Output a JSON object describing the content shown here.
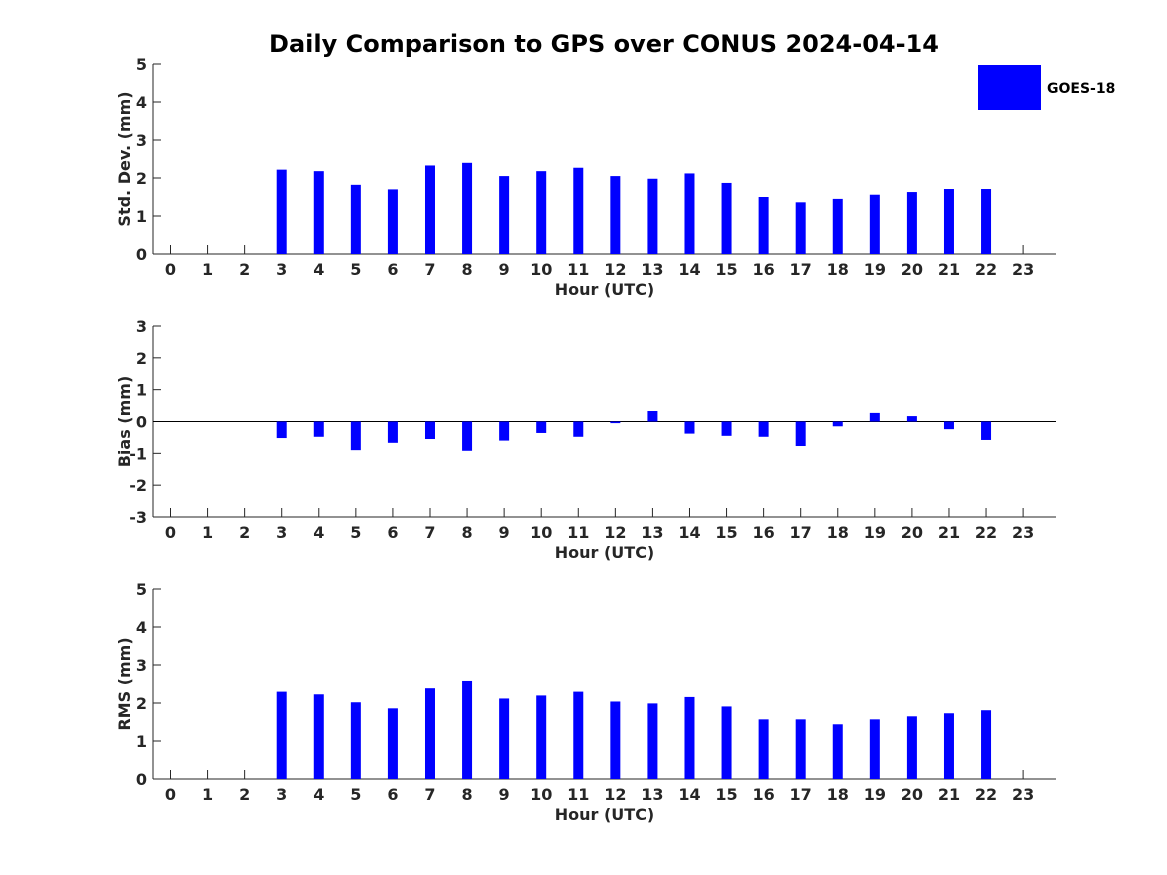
{
  "title": "Daily Comparison to GPS over CONUS 2024-04-14",
  "legend": {
    "label": "GOES-18",
    "color": "#0000ff"
  },
  "bar_color": "#0000ff",
  "axis_color": "#262626",
  "chart_data": [
    {
      "type": "bar",
      "id": "stddev",
      "xlabel": "Hour (UTC)",
      "ylabel": "Std. Dev. (mm)",
      "ylim": [
        0,
        5
      ],
      "yticks": [
        0,
        1,
        2,
        3,
        4,
        5
      ],
      "categories": [
        0,
        1,
        2,
        3,
        4,
        5,
        6,
        7,
        8,
        9,
        10,
        11,
        12,
        13,
        14,
        15,
        16,
        17,
        18,
        19,
        20,
        21,
        22,
        23
      ],
      "series": [
        {
          "name": "GOES-18",
          "values": [
            null,
            null,
            null,
            2.22,
            2.18,
            1.82,
            1.7,
            2.33,
            2.4,
            2.05,
            2.18,
            2.27,
            2.05,
            1.98,
            2.12,
            1.87,
            1.5,
            1.36,
            1.45,
            1.56,
            1.63,
            1.71,
            1.71,
            null
          ]
        }
      ]
    },
    {
      "type": "bar",
      "id": "bias",
      "xlabel": "Hour (UTC)",
      "ylabel": "Bias (mm)",
      "ylim": [
        -3,
        3
      ],
      "yticks": [
        -3,
        -2,
        -1,
        0,
        1,
        2,
        3
      ],
      "categories": [
        0,
        1,
        2,
        3,
        4,
        5,
        6,
        7,
        8,
        9,
        10,
        11,
        12,
        13,
        14,
        15,
        16,
        17,
        18,
        19,
        20,
        21,
        22,
        23
      ],
      "zero_line": true,
      "series": [
        {
          "name": "GOES-18",
          "values": [
            null,
            null,
            null,
            -0.52,
            -0.48,
            -0.9,
            -0.67,
            -0.55,
            -0.92,
            -0.6,
            -0.36,
            -0.48,
            -0.05,
            0.33,
            -0.38,
            -0.45,
            -0.48,
            -0.77,
            -0.15,
            0.27,
            0.17,
            -0.24,
            -0.58,
            null
          ]
        }
      ]
    },
    {
      "type": "bar",
      "id": "rms",
      "xlabel": "Hour (UTC)",
      "ylabel": "RMS (mm)",
      "ylim": [
        0,
        5
      ],
      "yticks": [
        0,
        1,
        2,
        3,
        4,
        5
      ],
      "categories": [
        0,
        1,
        2,
        3,
        4,
        5,
        6,
        7,
        8,
        9,
        10,
        11,
        12,
        13,
        14,
        15,
        16,
        17,
        18,
        19,
        20,
        21,
        22,
        23
      ],
      "series": [
        {
          "name": "GOES-18",
          "values": [
            null,
            null,
            null,
            2.3,
            2.23,
            2.02,
            1.86,
            2.39,
            2.58,
            2.12,
            2.2,
            2.3,
            2.04,
            1.99,
            2.16,
            1.91,
            1.57,
            1.57,
            1.44,
            1.57,
            1.65,
            1.73,
            1.81,
            null
          ]
        }
      ]
    }
  ]
}
